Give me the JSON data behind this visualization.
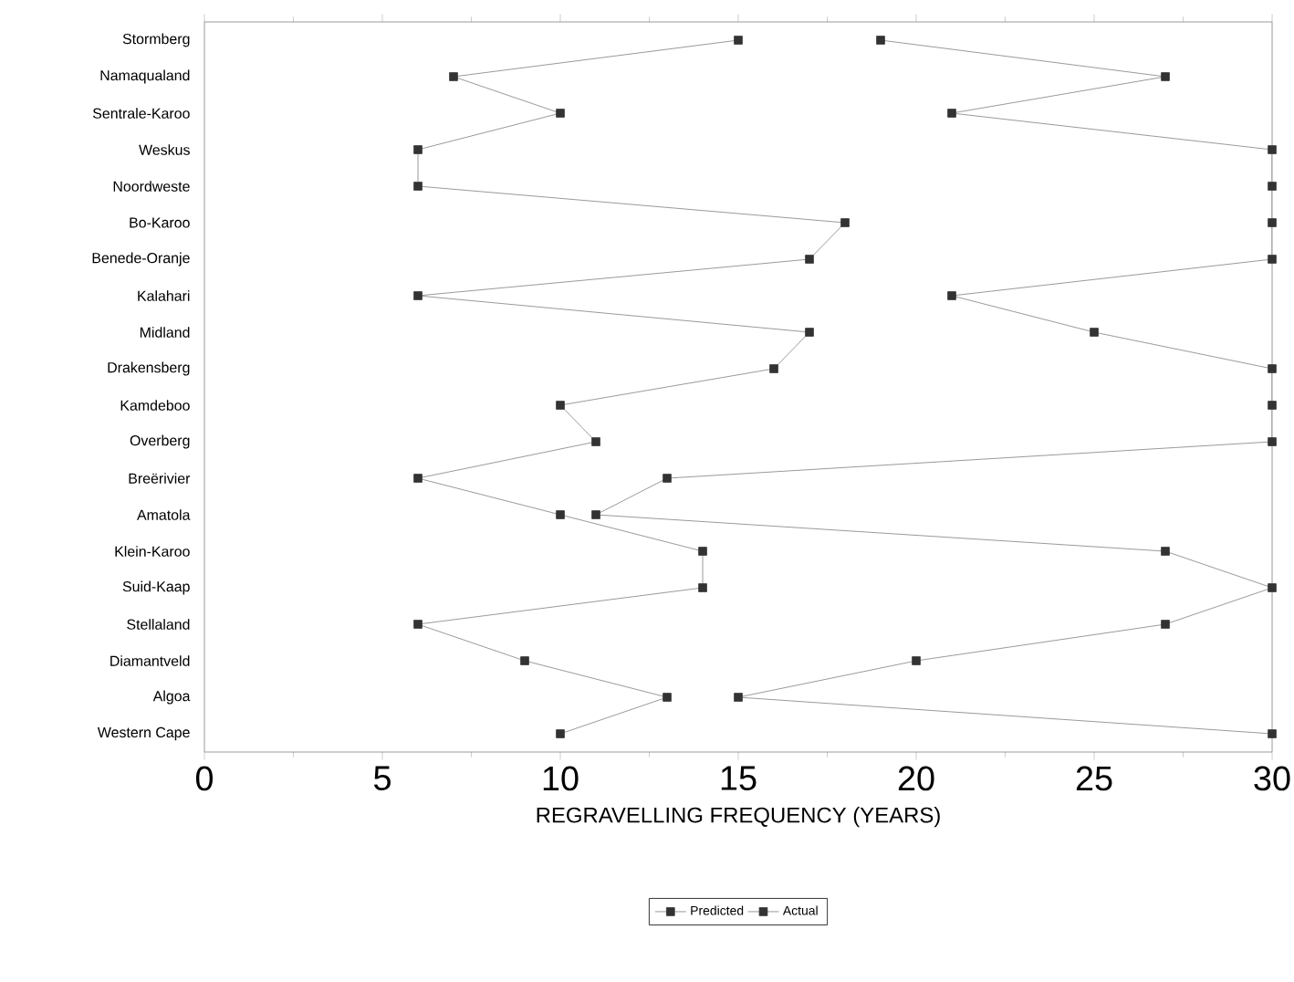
{
  "chart_data": {
    "type": "line",
    "orientation": "horizontal",
    "xlabel": "REGRAVELLING FREQUENCY (YEARS)",
    "categories": [
      "Stormberg",
      "Namaqualand",
      "Sentrale-Karoo",
      "Weskus",
      "Noordweste",
      "Bo-Karoo",
      "Benede-Oranje",
      "Kalahari",
      "Midland",
      "Drakensberg",
      "Kamdeboo",
      "Overberg",
      "Breërivier",
      "Amatola",
      "Klein-Karoo",
      "Suid-Kaap",
      "Stellaland",
      "Diamantveld",
      "Algoa",
      "Western Cape"
    ],
    "series": [
      {
        "name": "Predicted",
        "color": "#333333",
        "values": [
          15,
          7,
          10,
          6,
          6,
          18,
          17,
          6,
          17,
          16,
          10,
          11,
          6,
          10,
          14,
          14,
          6,
          9,
          13,
          10
        ]
      },
      {
        "name": "Actual",
        "color": "#333333",
        "values": [
          19,
          27,
          21,
          30,
          30,
          30,
          30,
          21,
          25,
          30,
          30,
          30,
          13,
          11,
          27,
          30,
          27,
          20,
          15,
          30
        ]
      }
    ],
    "xlim": [
      0,
      30
    ],
    "xticks": [
      0,
      5,
      10,
      15,
      20,
      25,
      30
    ],
    "legend": "bottom",
    "marker": "square",
    "line_style": "solid"
  }
}
